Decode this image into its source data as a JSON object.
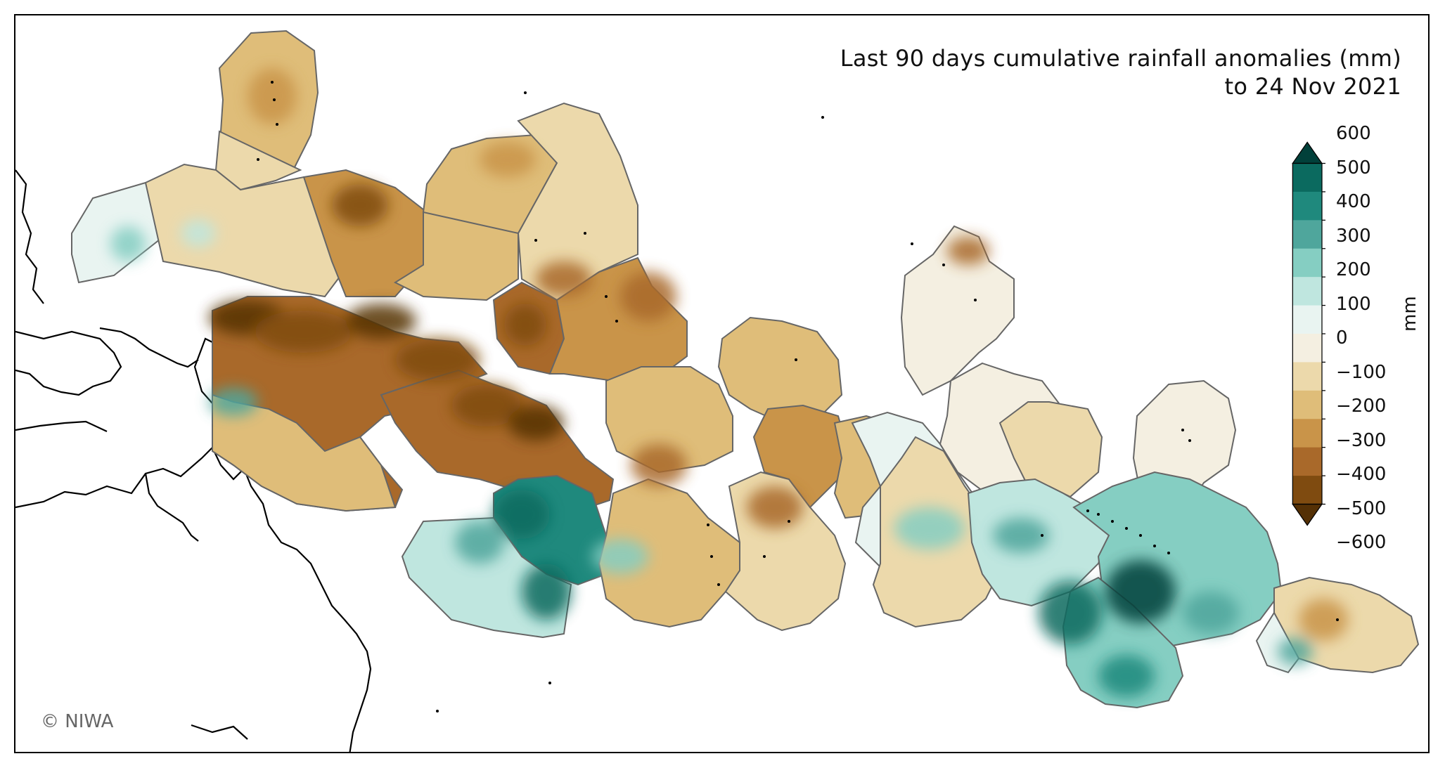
{
  "title": {
    "line1": "Last 90 days cumulative rainfall anomalies (mm)",
    "line2": "to 24 Nov 2021"
  },
  "copyright": "© NIWA",
  "colorbar": {
    "unit": "mm",
    "ticks": [
      "600",
      "500",
      "400",
      "300",
      "200",
      "100",
      "0",
      "−100",
      "−200",
      "−300",
      "−400",
      "−500",
      "−600"
    ],
    "extend": "both",
    "colors": [
      "#01403a",
      "#0b6a5f",
      "#1f897d",
      "#4fa69c",
      "#85cec2",
      "#bfe6df",
      "#e9f4f1",
      "#f4efe1",
      "#ecd9ab",
      "#dfbd79",
      "#c99449",
      "#a9692a",
      "#7f4b10",
      "#543005"
    ]
  }
}
